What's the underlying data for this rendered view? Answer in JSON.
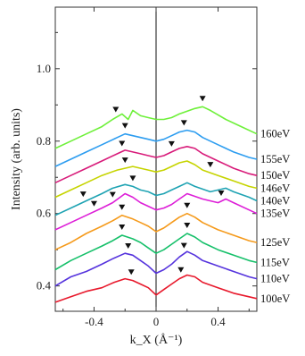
{
  "chart_data": {
    "type": "line",
    "xlabel": "k_X (Å⁻¹)",
    "ylabel": "Intensity (arb. units)",
    "xlim": [
      -0.65,
      0.65
    ],
    "ylim": [
      0.33,
      1.17
    ],
    "xticks": [
      -0.4,
      0,
      0.4
    ],
    "xtick_labels": [
      "-0.4",
      "0",
      "0.4"
    ],
    "yticks": [
      0.4,
      0.6,
      0.8,
      1.0
    ],
    "ytick_labels": [
      "0.4",
      "0.6",
      "0.8",
      "1.0"
    ],
    "zero_line": true,
    "grid": false,
    "legend": "right-side labels",
    "series": [
      {
        "name": "100eV",
        "color": "#e8192c",
        "points": [
          [
            -0.65,
            0.355
          ],
          [
            -0.55,
            0.37
          ],
          [
            -0.45,
            0.385
          ],
          [
            -0.35,
            0.395
          ],
          [
            -0.27,
            0.41
          ],
          [
            -0.2,
            0.42
          ],
          [
            -0.15,
            0.415
          ],
          [
            -0.1,
            0.405
          ],
          [
            -0.05,
            0.395
          ],
          [
            0,
            0.375
          ],
          [
            0.05,
            0.39
          ],
          [
            0.1,
            0.405
          ],
          [
            0.15,
            0.42
          ],
          [
            0.2,
            0.43
          ],
          [
            0.25,
            0.425
          ],
          [
            0.3,
            0.41
          ],
          [
            0.4,
            0.395
          ],
          [
            0.5,
            0.38
          ],
          [
            0.6,
            0.37
          ],
          [
            0.65,
            0.365
          ]
        ],
        "markers": [
          -0.16,
          0.16
        ]
      },
      {
        "name": "110eV",
        "color": "#5533dd",
        "points": [
          [
            -0.65,
            0.4
          ],
          [
            -0.55,
            0.425
          ],
          [
            -0.45,
            0.44
          ],
          [
            -0.35,
            0.46
          ],
          [
            -0.28,
            0.475
          ],
          [
            -0.2,
            0.49
          ],
          [
            -0.15,
            0.485
          ],
          [
            -0.1,
            0.47
          ],
          [
            -0.05,
            0.455
          ],
          [
            0,
            0.435
          ],
          [
            0.05,
            0.445
          ],
          [
            0.1,
            0.46
          ],
          [
            0.15,
            0.48
          ],
          [
            0.2,
            0.495
          ],
          [
            0.25,
            0.485
          ],
          [
            0.3,
            0.47
          ],
          [
            0.4,
            0.455
          ],
          [
            0.5,
            0.44
          ],
          [
            0.6,
            0.425
          ],
          [
            0.65,
            0.42
          ]
        ],
        "markers": [
          -0.18,
          0.18
        ]
      },
      {
        "name": "115eV",
        "color": "#16c06a",
        "points": [
          [
            -0.65,
            0.445
          ],
          [
            -0.55,
            0.47
          ],
          [
            -0.45,
            0.49
          ],
          [
            -0.35,
            0.51
          ],
          [
            -0.28,
            0.525
          ],
          [
            -0.22,
            0.54
          ],
          [
            -0.15,
            0.53
          ],
          [
            -0.1,
            0.52
          ],
          [
            -0.05,
            0.505
          ],
          [
            0,
            0.49
          ],
          [
            0.05,
            0.5
          ],
          [
            0.1,
            0.515
          ],
          [
            0.15,
            0.53
          ],
          [
            0.2,
            0.545
          ],
          [
            0.25,
            0.535
          ],
          [
            0.3,
            0.52
          ],
          [
            0.4,
            0.5
          ],
          [
            0.5,
            0.485
          ],
          [
            0.6,
            0.47
          ],
          [
            0.65,
            0.465
          ]
        ],
        "markers": [
          -0.22,
          0.2
        ]
      },
      {
        "name": "125eV",
        "color": "#f59a1b",
        "points": [
          [
            -0.65,
            0.5
          ],
          [
            -0.55,
            0.52
          ],
          [
            -0.45,
            0.545
          ],
          [
            -0.35,
            0.565
          ],
          [
            -0.28,
            0.58
          ],
          [
            -0.22,
            0.595
          ],
          [
            -0.15,
            0.585
          ],
          [
            -0.1,
            0.575
          ],
          [
            -0.05,
            0.565
          ],
          [
            0,
            0.55
          ],
          [
            0.05,
            0.56
          ],
          [
            0.1,
            0.575
          ],
          [
            0.15,
            0.59
          ],
          [
            0.2,
            0.6
          ],
          [
            0.25,
            0.59
          ],
          [
            0.3,
            0.575
          ],
          [
            0.4,
            0.555
          ],
          [
            0.5,
            0.54
          ],
          [
            0.6,
            0.525
          ],
          [
            0.65,
            0.52
          ]
        ],
        "markers": [
          -0.22,
          0.2
        ]
      },
      {
        "name": "135eV",
        "color": "#dd1ed7",
        "points": [
          [
            -0.65,
            0.555
          ],
          [
            -0.55,
            0.575
          ],
          [
            -0.45,
            0.595
          ],
          [
            -0.35,
            0.615
          ],
          [
            -0.28,
            0.63
          ],
          [
            -0.2,
            0.655
          ],
          [
            -0.15,
            0.645
          ],
          [
            -0.1,
            0.63
          ],
          [
            -0.05,
            0.62
          ],
          [
            0,
            0.61
          ],
          [
            0.05,
            0.615
          ],
          [
            0.1,
            0.625
          ],
          [
            0.15,
            0.64
          ],
          [
            0.2,
            0.655
          ],
          [
            0.3,
            0.64
          ],
          [
            0.4,
            0.63
          ],
          [
            0.45,
            0.64
          ],
          [
            0.5,
            0.63
          ],
          [
            0.6,
            0.61
          ],
          [
            0.65,
            0.6
          ]
        ],
        "markers": [
          -0.4,
          -0.28,
          0.42
        ]
      },
      {
        "name": "140eV",
        "color": "#1fa3b3",
        "points": [
          [
            -0.65,
            0.595
          ],
          [
            -0.55,
            0.615
          ],
          [
            -0.45,
            0.635
          ],
          [
            -0.35,
            0.655
          ],
          [
            -0.28,
            0.67
          ],
          [
            -0.2,
            0.68
          ],
          [
            -0.15,
            0.675
          ],
          [
            -0.1,
            0.665
          ],
          [
            -0.05,
            0.66
          ],
          [
            0,
            0.65
          ],
          [
            0.05,
            0.655
          ],
          [
            0.1,
            0.665
          ],
          [
            0.15,
            0.675
          ],
          [
            0.2,
            0.685
          ],
          [
            0.25,
            0.675
          ],
          [
            0.35,
            0.66
          ],
          [
            0.45,
            0.67
          ],
          [
            0.5,
            0.66
          ],
          [
            0.6,
            0.645
          ],
          [
            0.65,
            0.635
          ]
        ],
        "markers": [
          -0.47,
          -0.15
        ]
      },
      {
        "name": "146eV",
        "color": "#c6d400",
        "points": [
          [
            -0.65,
            0.645
          ],
          [
            -0.55,
            0.665
          ],
          [
            -0.45,
            0.685
          ],
          [
            -0.35,
            0.705
          ],
          [
            -0.25,
            0.72
          ],
          [
            -0.15,
            0.73
          ],
          [
            -0.1,
            0.725
          ],
          [
            -0.05,
            0.72
          ],
          [
            0,
            0.715
          ],
          [
            0.05,
            0.72
          ],
          [
            0.1,
            0.73
          ],
          [
            0.15,
            0.74
          ],
          [
            0.2,
            0.745
          ],
          [
            0.25,
            0.735
          ],
          [
            0.3,
            0.72
          ],
          [
            0.4,
            0.705
          ],
          [
            0.5,
            0.69
          ],
          [
            0.6,
            0.675
          ],
          [
            0.65,
            0.67
          ]
        ],
        "markers": [
          -0.2,
          0.35
        ]
      },
      {
        "name": "150eV",
        "color": "#d81b7a",
        "points": [
          [
            -0.65,
            0.685
          ],
          [
            -0.55,
            0.705
          ],
          [
            -0.45,
            0.725
          ],
          [
            -0.35,
            0.745
          ],
          [
            -0.25,
            0.765
          ],
          [
            -0.2,
            0.775
          ],
          [
            -0.15,
            0.77
          ],
          [
            -0.1,
            0.765
          ],
          [
            -0.05,
            0.76
          ],
          [
            0,
            0.755
          ],
          [
            0.05,
            0.76
          ],
          [
            0.1,
            0.77
          ],
          [
            0.15,
            0.78
          ],
          [
            0.2,
            0.785
          ],
          [
            0.25,
            0.78
          ],
          [
            0.3,
            0.765
          ],
          [
            0.4,
            0.745
          ],
          [
            0.5,
            0.725
          ],
          [
            0.6,
            0.71
          ],
          [
            0.65,
            0.705
          ]
        ],
        "markers": [
          -0.22,
          0.1
        ]
      },
      {
        "name": "155eV",
        "color": "#2d9df0",
        "points": [
          [
            -0.65,
            0.73
          ],
          [
            -0.55,
            0.75
          ],
          [
            -0.45,
            0.77
          ],
          [
            -0.35,
            0.79
          ],
          [
            -0.25,
            0.81
          ],
          [
            -0.2,
            0.82
          ],
          [
            -0.15,
            0.815
          ],
          [
            -0.1,
            0.81
          ],
          [
            -0.05,
            0.805
          ],
          [
            0,
            0.8
          ],
          [
            0.05,
            0.805
          ],
          [
            0.1,
            0.815
          ],
          [
            0.15,
            0.825
          ],
          [
            0.2,
            0.83
          ],
          [
            0.25,
            0.825
          ],
          [
            0.3,
            0.81
          ],
          [
            0.4,
            0.79
          ],
          [
            0.5,
            0.77
          ],
          [
            0.6,
            0.755
          ],
          [
            0.65,
            0.75
          ]
        ],
        "markers": [
          -0.2,
          0.18
        ]
      },
      {
        "name": "160eV",
        "color": "#6ef03a",
        "points": [
          [
            -0.65,
            0.78
          ],
          [
            -0.55,
            0.8
          ],
          [
            -0.45,
            0.82
          ],
          [
            -0.35,
            0.84
          ],
          [
            -0.28,
            0.86
          ],
          [
            -0.22,
            0.875
          ],
          [
            -0.18,
            0.86
          ],
          [
            -0.15,
            0.885
          ],
          [
            -0.1,
            0.87
          ],
          [
            -0.05,
            0.865
          ],
          [
            0,
            0.86
          ],
          [
            0.05,
            0.86
          ],
          [
            0.1,
            0.865
          ],
          [
            0.15,
            0.875
          ],
          [
            0.25,
            0.89
          ],
          [
            0.3,
            0.895
          ],
          [
            0.35,
            0.885
          ],
          [
            0.45,
            0.86
          ],
          [
            0.55,
            0.84
          ],
          [
            0.65,
            0.82
          ]
        ],
        "markers": [
          -0.26,
          0.3
        ]
      }
    ]
  }
}
